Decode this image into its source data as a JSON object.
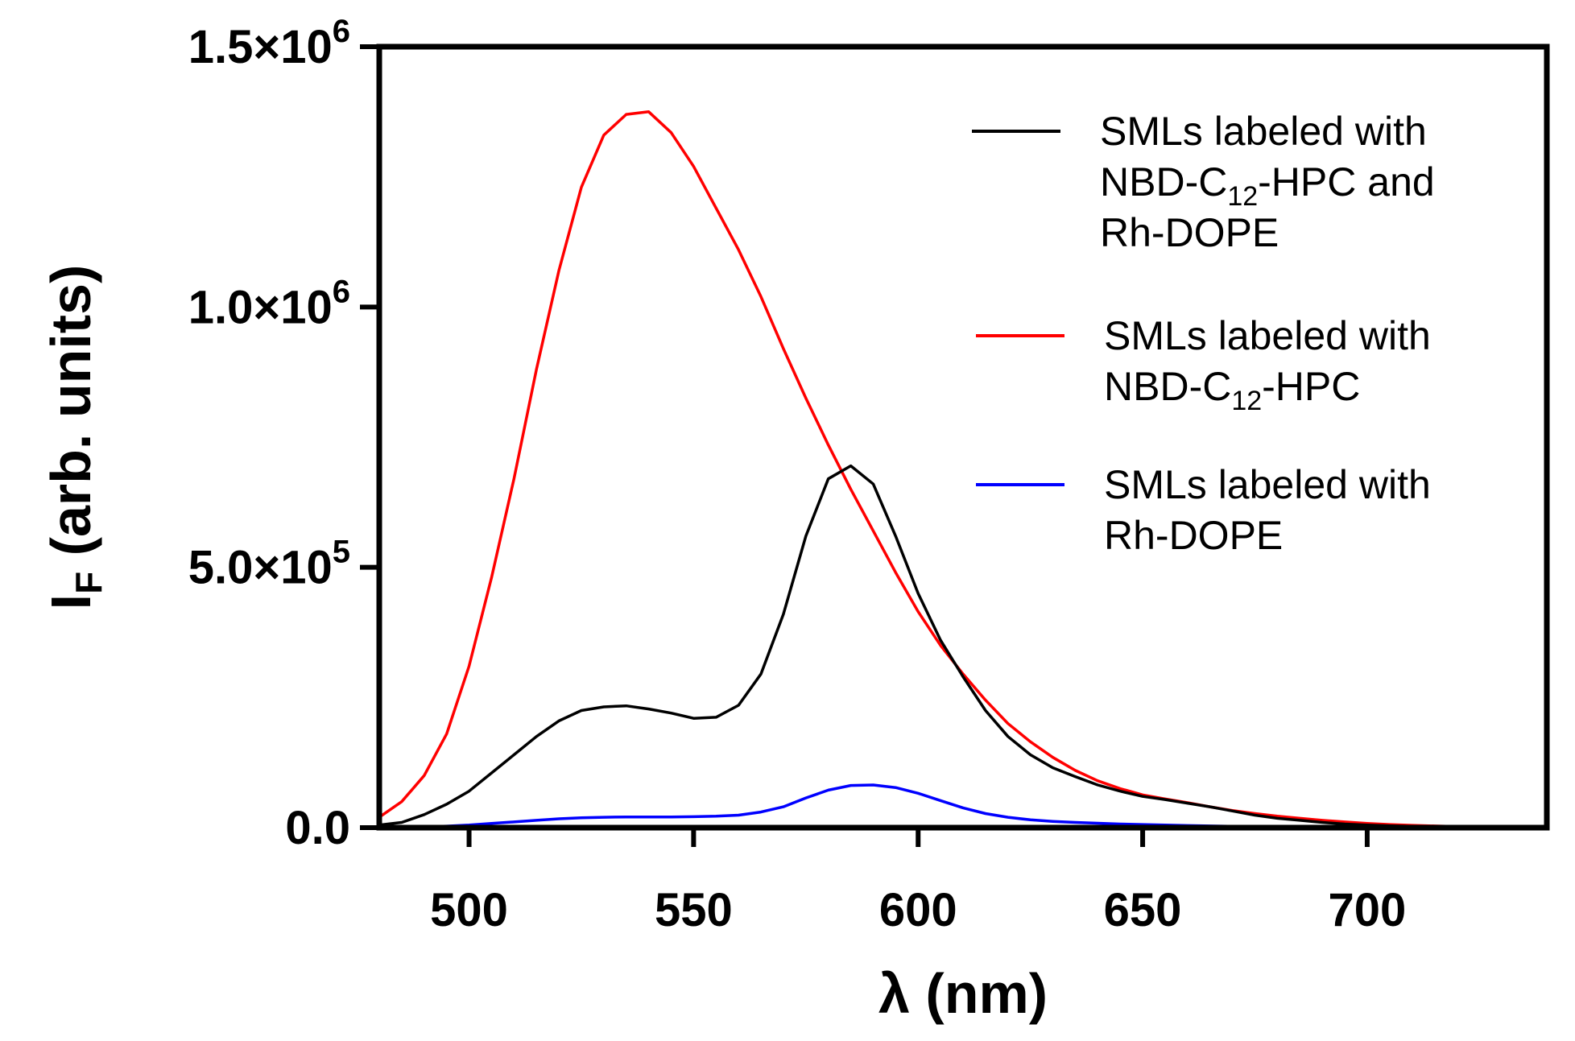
{
  "chart_data": {
    "type": "line",
    "xlabel": "λ (nm)",
    "ylabel": {
      "main": "I",
      "sub": "F",
      "rest": " (arb. units)"
    },
    "xlim": [
      480,
      740
    ],
    "ylim": [
      0,
      1500000
    ],
    "x_ticks": [
      500,
      550,
      600,
      650,
      700
    ],
    "x_tick_labels": [
      "500",
      "550",
      "600",
      "650",
      "700"
    ],
    "y_ticks": [
      0,
      500000,
      1000000,
      1500000
    ],
    "y_tick_labels": [
      {
        "text": "0.0",
        "exp": ""
      },
      {
        "text": "5.0×10",
        "exp": "5"
      },
      {
        "text": "1.0×10",
        "exp": "6"
      },
      {
        "text": "1.5×10",
        "exp": "6"
      }
    ],
    "grid": false,
    "legend": {
      "position": "top-right",
      "entries": [
        {
          "series": 0,
          "lines": [
            {
              "text": "SMLs labeled with"
            },
            {
              "text": "NBD-C",
              "sub": "12",
              "after": "-HPC and"
            },
            {
              "text": "Rh-DOPE"
            }
          ]
        },
        {
          "series": 1,
          "lines": [
            {
              "text": "SMLs labeled with"
            },
            {
              "text": "NBD-C",
              "sub": "12",
              "after": "-HPC"
            }
          ]
        },
        {
          "series": 2,
          "lines": [
            {
              "text": "SMLs labeled with"
            },
            {
              "text": "Rh-DOPE"
            }
          ]
        }
      ]
    },
    "series": [
      {
        "name": "SMLs labeled with NBD-C12-HPC and Rh-DOPE",
        "color": "#000000",
        "x": [
          480,
          485,
          490,
          495,
          500,
          505,
          510,
          515,
          520,
          525,
          530,
          535,
          540,
          545,
          550,
          555,
          560,
          565,
          570,
          575,
          580,
          585,
          590,
          595,
          600,
          605,
          610,
          615,
          620,
          625,
          630,
          635,
          640,
          645,
          650,
          655,
          660,
          665,
          670,
          675,
          680,
          685,
          690,
          695,
          700,
          705,
          710,
          715,
          720,
          725,
          730,
          735,
          740
        ],
        "y": [
          5000,
          10000,
          25000,
          45000,
          70000,
          105000,
          140000,
          175000,
          205000,
          225000,
          232000,
          234000,
          228000,
          220000,
          210000,
          212000,
          235000,
          295000,
          410000,
          560000,
          670000,
          695000,
          660000,
          560000,
          450000,
          360000,
          290000,
          225000,
          175000,
          140000,
          115000,
          98000,
          82000,
          70000,
          60000,
          54000,
          47000,
          40000,
          32000,
          24000,
          18000,
          14000,
          10000,
          7000,
          5000,
          3500,
          2500,
          1500,
          1000,
          600,
          300,
          100,
          0
        ]
      },
      {
        "name": "SMLs labeled with NBD-C12-HPC",
        "color": "#ff0000",
        "x": [
          480,
          485,
          490,
          495,
          500,
          505,
          510,
          515,
          520,
          525,
          530,
          535,
          540,
          545,
          550,
          555,
          560,
          565,
          570,
          575,
          580,
          585,
          590,
          595,
          600,
          605,
          610,
          615,
          620,
          625,
          630,
          635,
          640,
          645,
          650,
          655,
          660,
          665,
          670,
          675,
          680,
          685,
          690,
          695,
          700,
          705,
          710,
          715,
          720,
          725,
          730,
          735,
          740
        ],
        "y": [
          20000,
          50000,
          100000,
          180000,
          310000,
          480000,
          670000,
          880000,
          1070000,
          1230000,
          1330000,
          1370000,
          1375000,
          1335000,
          1270000,
          1190000,
          1110000,
          1020000,
          920000,
          825000,
          735000,
          650000,
          570000,
          490000,
          415000,
          350000,
          295000,
          245000,
          200000,
          165000,
          135000,
          110000,
          90000,
          75000,
          63000,
          55000,
          48000,
          40000,
          33000,
          27000,
          22000,
          18000,
          14000,
          11000,
          8000,
          6000,
          4500,
          3200,
          2200,
          1500,
          900,
          400,
          0
        ]
      },
      {
        "name": "SMLs labeled with Rh-DOPE",
        "color": "#0000ff",
        "x": [
          480,
          485,
          490,
          495,
          500,
          505,
          510,
          515,
          520,
          525,
          530,
          535,
          540,
          545,
          550,
          555,
          560,
          565,
          570,
          575,
          580,
          585,
          590,
          595,
          600,
          605,
          610,
          615,
          620,
          625,
          630,
          635,
          640,
          645,
          650,
          655,
          660,
          665,
          670,
          675,
          680,
          685,
          690,
          695,
          700,
          705,
          710,
          715,
          720,
          725,
          730,
          735,
          740
        ],
        "y": [
          0,
          500,
          1500,
          3000,
          5000,
          8000,
          11000,
          14000,
          17000,
          19000,
          20000,
          20500,
          20500,
          20500,
          21000,
          22000,
          24000,
          30000,
          40000,
          57000,
          72000,
          81000,
          82000,
          77000,
          66000,
          52000,
          38000,
          27000,
          20000,
          15000,
          12000,
          10000,
          8500,
          7000,
          6000,
          5000,
          4000,
          3200,
          2500,
          2000,
          1500,
          1000,
          800,
          600,
          400,
          300,
          200,
          150,
          100,
          50,
          0,
          0,
          0
        ]
      }
    ]
  }
}
